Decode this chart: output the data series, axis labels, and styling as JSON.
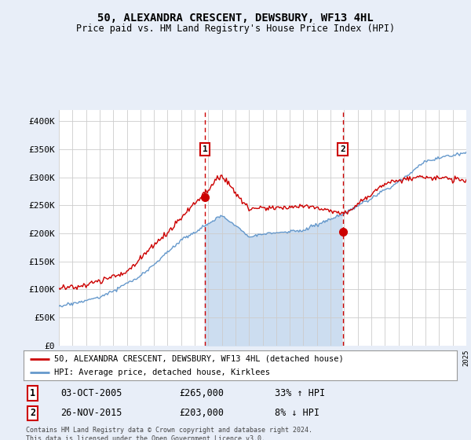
{
  "title": "50, ALEXANDRA CRESCENT, DEWSBURY, WF13 4HL",
  "subtitle": "Price paid vs. HM Land Registry's House Price Index (HPI)",
  "legend_line1": "50, ALEXANDRA CRESCENT, DEWSBURY, WF13 4HL (detached house)",
  "legend_line2": "HPI: Average price, detached house, Kirklees",
  "transaction1_date": "03-OCT-2005",
  "transaction1_price": "£265,000",
  "transaction1_hpi": "33% ↑ HPI",
  "transaction2_date": "26-NOV-2015",
  "transaction2_price": "£203,000",
  "transaction2_hpi": "8% ↓ HPI",
  "footer": "Contains HM Land Registry data © Crown copyright and database right 2024.\nThis data is licensed under the Open Government Licence v3.0.",
  "bg_color": "#e8eef8",
  "plot_bg_color": "#ffffff",
  "red_color": "#cc0000",
  "blue_color": "#6699cc",
  "fill_color": "#ccddf0",
  "dot1_x": 2005.75,
  "dot1_y": 265000,
  "dot2_x": 2015.9,
  "dot2_y": 203000,
  "vline1_x": 2005.75,
  "vline2_x": 2015.9,
  "xmin": 1995,
  "xmax": 2025,
  "ymin": 0,
  "ymax": 420000,
  "yticks": [
    0,
    50000,
    100000,
    150000,
    200000,
    250000,
    300000,
    350000,
    400000
  ]
}
